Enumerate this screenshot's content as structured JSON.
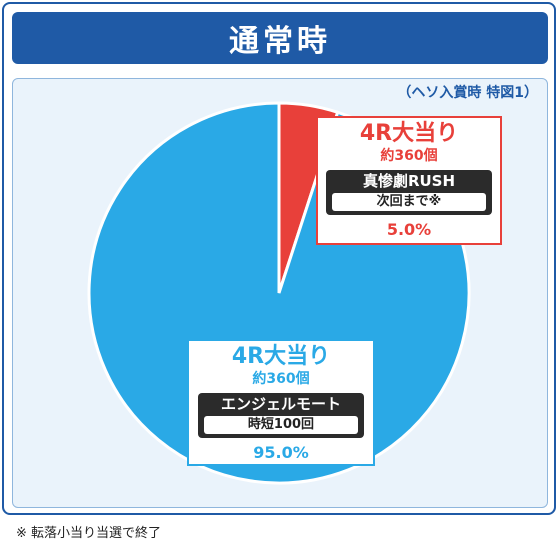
{
  "header": {
    "title": "通常時"
  },
  "subtitle": "（ヘソ入賞時 特図1）",
  "chart_data": {
    "type": "pie",
    "slices": [
      {
        "label": "4R大当り",
        "sub": "約360個",
        "mode": "真惨劇RUSH",
        "condition": "次回まで※",
        "value": 5.0,
        "value_label": "5.0%",
        "color": "#e8403a"
      },
      {
        "label": "4R大当り",
        "sub": "約360個",
        "mode": "エンジェルモート",
        "condition": "時短100回",
        "value": 95.0,
        "value_label": "95.0%",
        "color": "#2aa9e6"
      }
    ]
  },
  "footnote": "※ 転落小当り当選で終了"
}
